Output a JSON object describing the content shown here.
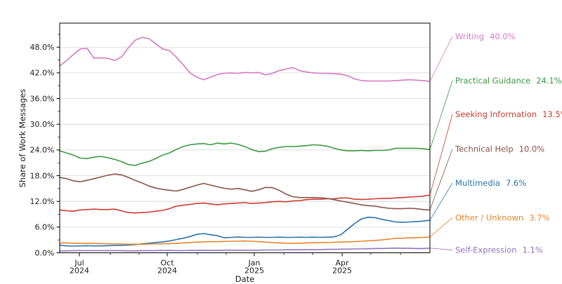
{
  "chart_data": {
    "type": "line",
    "title": "",
    "x_axis": {
      "label": "Date",
      "unit": "weeks",
      "major_ticks": [
        {
          "week": 2.87,
          "line1": "Jul",
          "line2": "2024"
        },
        {
          "week": 15.68,
          "line1": "Oct",
          "line2": "2024"
        },
        {
          "week": 28.38,
          "line1": "Jan",
          "line2": "2025"
        },
        {
          "week": 41.19,
          "line1": "Apr",
          "line2": "2025"
        }
      ],
      "minor_tick_weeks": [
        7.38,
        11.58,
        20.08,
        24.28,
        32.69,
        36.89,
        45.39,
        49.7
      ]
    },
    "y_axis": {
      "label": "Share of Work Messages",
      "range": [
        0,
        53.6
      ],
      "grid": true,
      "major_ticks": [
        {
          "value": 0,
          "label": "0.0%"
        },
        {
          "value": 6,
          "label": "6.0%"
        },
        {
          "value": 12,
          "label": "12.0%"
        },
        {
          "value": 18,
          "label": "18.0%"
        },
        {
          "value": 24,
          "label": "24.0%"
        },
        {
          "value": 30,
          "label": "30.0%"
        },
        {
          "value": 36,
          "label": "36.0%"
        },
        {
          "value": 42,
          "label": "42.0%"
        },
        {
          "value": 48,
          "label": "48.0%"
        }
      ],
      "minor_tick_values": [
        3,
        9,
        15,
        21,
        27,
        33,
        39,
        45,
        51
      ]
    },
    "legend_position": "right-annotations",
    "series": [
      {
        "name": "Writing",
        "end_label": "40.0%",
        "color": "#d678c2",
        "label_y": 52,
        "values": [
          43.6,
          44.9,
          46.3,
          47.6,
          47.7,
          45.4,
          45.5,
          45.4,
          44.9,
          45.7,
          47.8,
          49.6,
          50.3,
          50.0,
          48.8,
          47.6,
          47.2,
          45.7,
          43.9,
          42.0,
          41.0,
          40.4,
          41.0,
          41.6,
          41.9,
          42.0,
          41.9,
          42.1,
          42.0,
          42.1,
          41.5,
          41.9,
          42.5,
          42.9,
          43.2,
          42.5,
          42.2,
          42.0,
          41.9,
          41.9,
          41.8,
          41.7,
          41.3,
          40.6,
          40.2,
          40.1,
          40.1,
          40.1,
          40.1,
          40.2,
          40.3,
          40.4,
          40.3,
          40.2,
          40.0
        ]
      },
      {
        "name": "Practical Guidance",
        "end_label": "24.1%",
        "color": "#3a9a3d",
        "label_y": 115,
        "values": [
          23.8,
          23.3,
          22.8,
          22.1,
          22.0,
          22.3,
          22.5,
          22.2,
          21.8,
          21.3,
          20.6,
          20.4,
          20.9,
          21.3,
          22.0,
          22.8,
          23.3,
          24.1,
          24.8,
          25.2,
          25.4,
          25.5,
          25.2,
          25.6,
          25.4,
          25.6,
          25.3,
          24.8,
          24.1,
          23.6,
          23.7,
          24.3,
          24.6,
          24.8,
          24.8,
          24.9,
          25.0,
          25.2,
          25.1,
          24.9,
          24.4,
          24.0,
          23.8,
          23.8,
          23.9,
          23.8,
          23.9,
          23.9,
          24.0,
          24.4,
          24.4,
          24.4,
          24.4,
          24.3,
          24.1
        ]
      },
      {
        "name": "Seeking Information",
        "end_label": "13.5%",
        "color": "#cc3b33",
        "label_y": 163,
        "values": [
          10.0,
          9.8,
          9.7,
          10.0,
          10.1,
          10.2,
          10.1,
          10.1,
          10.2,
          9.8,
          9.4,
          9.3,
          9.4,
          9.5,
          9.7,
          9.9,
          10.3,
          10.9,
          11.1,
          11.3,
          11.5,
          11.6,
          11.4,
          11.2,
          11.4,
          11.5,
          11.6,
          11.7,
          11.5,
          11.6,
          11.7,
          11.9,
          12.0,
          11.9,
          12.1,
          12.2,
          12.4,
          12.5,
          12.5,
          12.6,
          12.6,
          12.8,
          12.8,
          12.5,
          12.45,
          12.5,
          12.6,
          12.7,
          12.7,
          12.8,
          12.9,
          13.0,
          13.1,
          13.2,
          13.5
        ]
      },
      {
        "name": "Technical Help",
        "end_label": "10.0%",
        "color": "#8a5245",
        "label_y": 212.5,
        "values": [
          17.6,
          17.3,
          16.8,
          16.6,
          16.9,
          17.3,
          17.7,
          18.1,
          18.4,
          18.2,
          17.6,
          16.9,
          16.3,
          15.6,
          15.1,
          14.8,
          14.6,
          14.4,
          14.8,
          15.3,
          15.8,
          16.2,
          15.8,
          15.4,
          15.05,
          14.85,
          15.0,
          14.7,
          14.35,
          14.7,
          15.25,
          15.2,
          14.6,
          13.7,
          13.1,
          12.9,
          12.9,
          12.9,
          12.85,
          12.7,
          12.4,
          12.1,
          11.8,
          11.5,
          11.2,
          11.0,
          10.9,
          10.6,
          10.4,
          10.3,
          10.3,
          10.4,
          10.3,
          10.1,
          10.0
        ]
      },
      {
        "name": "Multimedia",
        "end_label": "7.6%",
        "color": "#2a74ad",
        "label_y": 261,
        "values": [
          1.8,
          1.6,
          1.55,
          1.6,
          1.65,
          1.6,
          1.6,
          1.65,
          1.7,
          1.75,
          1.8,
          1.9,
          2.1,
          2.25,
          2.4,
          2.55,
          2.75,
          3.1,
          3.4,
          3.8,
          4.3,
          4.5,
          4.2,
          4.0,
          3.5,
          3.6,
          3.7,
          3.6,
          3.6,
          3.65,
          3.6,
          3.6,
          3.65,
          3.6,
          3.6,
          3.65,
          3.6,
          3.65,
          3.6,
          3.65,
          3.7,
          4.2,
          5.5,
          6.8,
          7.9,
          8.3,
          8.2,
          7.8,
          7.5,
          7.2,
          7.1,
          7.2,
          7.3,
          7.4,
          7.6
        ]
      },
      {
        "name": "Other / Unknown",
        "end_label": "3.7%",
        "color": "#e8862e",
        "label_y": 310.5,
        "values": [
          2.3,
          2.3,
          2.25,
          2.2,
          2.2,
          2.2,
          2.15,
          2.1,
          2.1,
          2.05,
          2.0,
          2.0,
          2.0,
          2.05,
          2.1,
          2.1,
          2.15,
          2.2,
          2.3,
          2.4,
          2.5,
          2.55,
          2.6,
          2.6,
          2.65,
          2.7,
          2.7,
          2.75,
          2.7,
          2.6,
          2.5,
          2.4,
          2.3,
          2.25,
          2.2,
          2.25,
          2.3,
          2.35,
          2.4,
          2.4,
          2.45,
          2.5,
          2.55,
          2.6,
          2.7,
          2.8,
          2.9,
          3.0,
          3.2,
          3.35,
          3.4,
          3.5,
          3.55,
          3.6,
          3.7
        ]
      },
      {
        "name": "Self-Expression",
        "end_label": "1.1%",
        "color": "#9372bd",
        "label_y": 356.5,
        "values": [
          0.45,
          0.45,
          0.5,
          0.5,
          0.5,
          0.5,
          0.5,
          0.5,
          0.5,
          0.5,
          0.45,
          0.45,
          0.5,
          0.5,
          0.5,
          0.55,
          0.55,
          0.5,
          0.5,
          0.55,
          0.55,
          0.6,
          0.55,
          0.55,
          0.6,
          0.6,
          0.6,
          0.6,
          0.6,
          0.6,
          0.65,
          0.65,
          0.65,
          0.7,
          0.7,
          0.7,
          0.75,
          0.75,
          0.75,
          0.8,
          0.8,
          0.85,
          0.85,
          0.9,
          0.9,
          0.95,
          1.0,
          1.0,
          1.05,
          1.1,
          1.05,
          1.05,
          1.0,
          1.0,
          1.1
        ]
      }
    ],
    "style": {
      "grid_color": "#d4d4d4",
      "spine_color": "#000000",
      "tick_color": "#000000",
      "background": "#ffffff"
    }
  }
}
